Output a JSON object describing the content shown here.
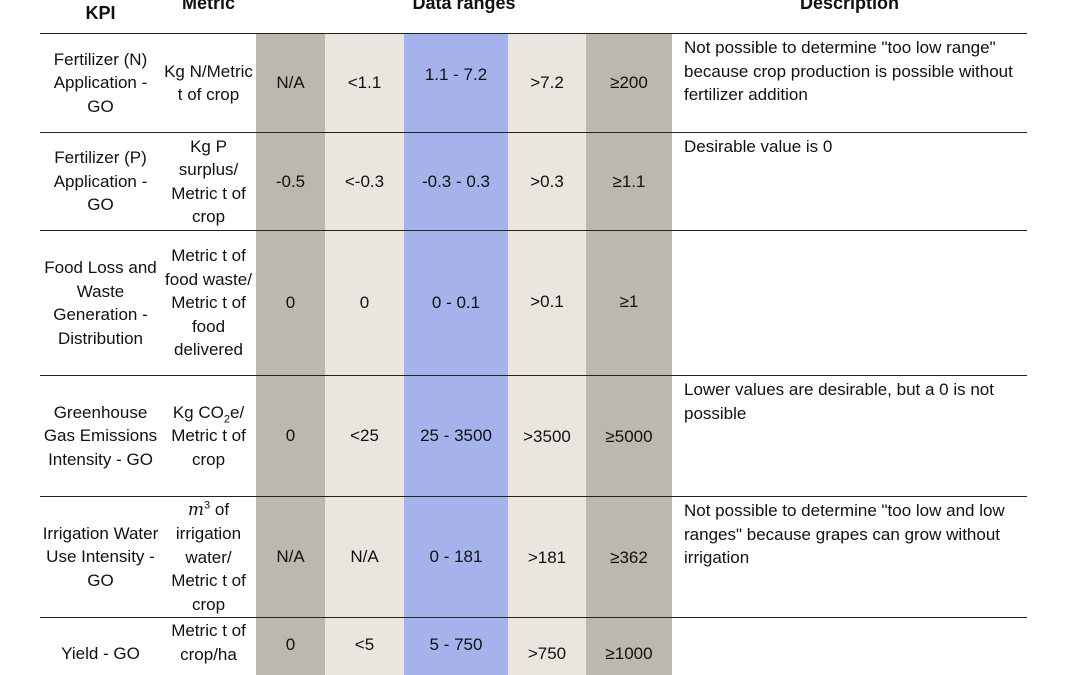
{
  "headers": {
    "kpi": "KPI",
    "metric": "Metric",
    "ranges": "Data ranges",
    "description": "Description"
  },
  "rows": [
    {
      "kpi": "Fertilizer (N) Application - GO",
      "metric": "Kg N/Metric t of crop",
      "ranges": [
        "N/A",
        "<1.1",
        "1.1 - 7.2",
        ">7.2",
        "≥200"
      ],
      "description": "Not possible to determine \"too low range\" because crop production is possible without fertilizer addition"
    },
    {
      "kpi": "Fertilizer (P) Application - GO",
      "metric": "Kg P surplus/ Metric t of crop",
      "ranges": [
        "-0.5",
        "<-0.3",
        "-0.3 - 0.3",
        ">0.3",
        "≥1.1"
      ],
      "description": "Desirable value is 0"
    },
    {
      "kpi": "Food Loss and Waste Generation - Distribution",
      "metric": "Metric t of food waste/ Metric t of food delivered",
      "ranges": [
        "0",
        "0",
        "0 - 0.1",
        ">0.1",
        "≥1"
      ],
      "description": ""
    },
    {
      "kpi": "Greenhouse Gas Emissions Intensity - GO",
      "metric_parts": [
        "Kg CO",
        "2",
        "e/ Metric t of crop"
      ],
      "ranges": [
        "0",
        "<25",
        "25 - 3500",
        ">3500",
        "≥5000"
      ],
      "description": "Lower values are desirable, but a 0 is not possible"
    },
    {
      "kpi": "Irrigation Water Use Intensity - GO",
      "metric_parts": [
        "m",
        "3",
        " of irrigation water/ Metric t of crop"
      ],
      "ranges": [
        "N/A",
        "N/A",
        "0 - 181",
        ">181",
        "≥362"
      ],
      "description": "Not possible to determine \"too low and low ranges\" because grapes can grow without irrigation"
    },
    {
      "kpi": "Yield - GO",
      "metric": "Metric t of crop/ha",
      "ranges": [
        "0",
        "<5",
        "5 - 750",
        ">750",
        "≥1000"
      ],
      "description": ""
    }
  ],
  "colors": {
    "gray": "#bcb8b0",
    "beige": "#ebe5df",
    "blue": "#a5b2ec"
  }
}
